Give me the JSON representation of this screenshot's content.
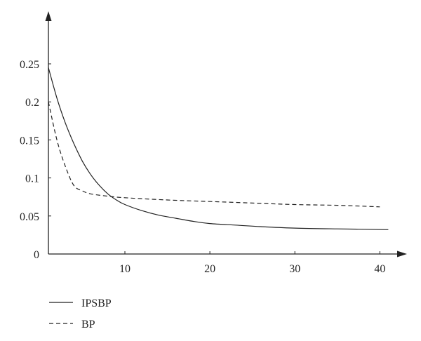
{
  "chart_data": {
    "type": "line",
    "title": "",
    "xlabel": "",
    "ylabel": "",
    "xlim": [
      1,
      43
    ],
    "ylim": [
      0,
      0.28
    ],
    "x_ticks": [
      10,
      20,
      30,
      40
    ],
    "x_tick_labels": [
      "10",
      "20",
      "30",
      "40"
    ],
    "y_ticks": [
      0,
      0.05,
      0.1,
      0.15,
      0.2,
      0.25
    ],
    "y_tick_labels": [
      "0",
      "0.05",
      "0.1",
      "0.15",
      "0.2",
      "0.25"
    ],
    "grid": false,
    "legend_position": "bottom-left",
    "series": [
      {
        "name": "IPSBP",
        "style": "solid",
        "color": "#222222",
        "x": [
          1,
          2,
          3,
          4,
          5,
          6,
          7,
          8,
          9,
          10,
          12,
          14,
          16,
          18,
          20,
          23,
          26,
          30,
          35,
          41
        ],
        "y": [
          0.245,
          0.205,
          0.172,
          0.145,
          0.122,
          0.104,
          0.09,
          0.079,
          0.071,
          0.065,
          0.057,
          0.051,
          0.047,
          0.043,
          0.04,
          0.038,
          0.036,
          0.034,
          0.033,
          0.032
        ]
      },
      {
        "name": "BP",
        "style": "dashed",
        "color": "#222222",
        "x": [
          1,
          2,
          3,
          4,
          5,
          6,
          8,
          10,
          15,
          20,
          25,
          30,
          35,
          40
        ],
        "y": [
          0.2,
          0.15,
          0.115,
          0.09,
          0.083,
          0.079,
          0.076,
          0.074,
          0.071,
          0.069,
          0.067,
          0.065,
          0.064,
          0.062
        ]
      }
    ]
  }
}
